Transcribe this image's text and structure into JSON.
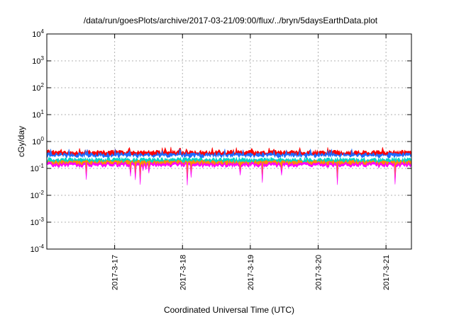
{
  "chart_data": {
    "type": "area",
    "title": "/data/run/goesPlots/archive/2017-03-21/09:00/flux/../bryn/5daysEarthData.plot",
    "xlabel": "Coordinated Universal Time (UTC)",
    "ylabel": "cGy/day",
    "yscale": "log",
    "ylim": [
      0.0001,
      10000
    ],
    "y_ticks": [
      {
        "base": "10",
        "exp": "-4",
        "value": 0.0001
      },
      {
        "base": "10",
        "exp": "-3",
        "value": 0.001
      },
      {
        "base": "10",
        "exp": "-2",
        "value": 0.01
      },
      {
        "base": "10",
        "exp": "-1",
        "value": 0.1
      },
      {
        "base": "10",
        "exp": "0",
        "value": 1
      },
      {
        "base": "10",
        "exp": "1",
        "value": 10
      },
      {
        "base": "10",
        "exp": "2",
        "value": 100
      },
      {
        "base": "10",
        "exp": "3",
        "value": 1000
      },
      {
        "base": "10",
        "exp": "4",
        "value": 10000
      }
    ],
    "xlim": [
      "2017-03-16T00:00",
      "2017-03-21T09:00"
    ],
    "x_ticks": [
      "2017-3-17",
      "2017-3-18",
      "2017-3-19",
      "2017-3-20",
      "2017-3-21"
    ],
    "grid": true,
    "series": [
      {
        "color": "#ff0000",
        "typical": 0.42,
        "spike_max": 0.65
      },
      {
        "color": "#1e6bff",
        "typical": 0.34,
        "spike_max": 0.55
      },
      {
        "color": "#ffffff",
        "typical": 0.27,
        "spike_max": 0.32
      },
      {
        "color": "#00d4c8",
        "typical": 0.22,
        "spike_max": 0.26
      },
      {
        "color": "#ff8c00",
        "typical": 0.18,
        "spike_max": 0.2
      },
      {
        "color": "#ff00ff",
        "typical": 0.15,
        "spike_min": 0.025
      }
    ]
  }
}
